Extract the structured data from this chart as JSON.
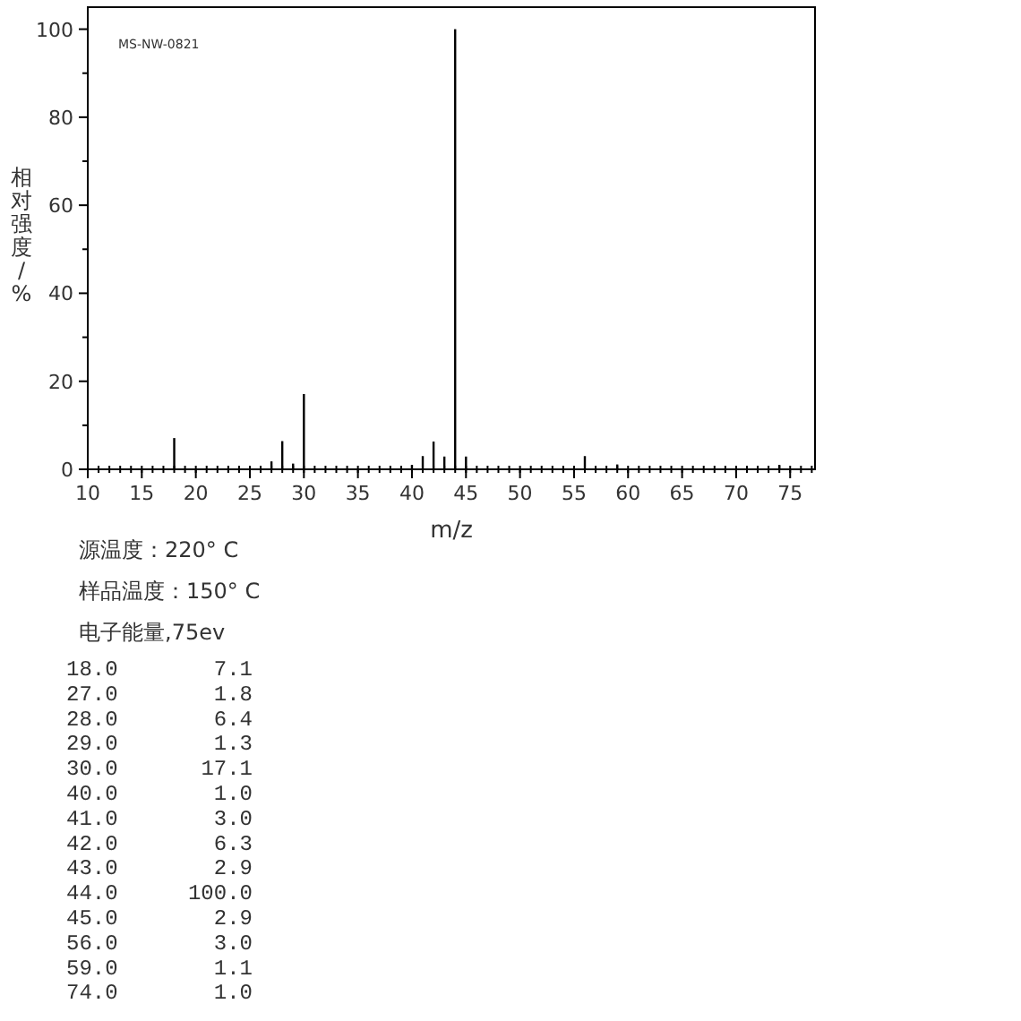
{
  "chart_data": {
    "type": "bar",
    "xlabel": "m/z",
    "ylabel": "相对强度/%",
    "x": [
      18,
      27,
      28,
      29,
      30,
      40,
      41,
      42,
      43,
      44,
      45,
      56,
      59,
      74
    ],
    "values": [
      7.1,
      1.8,
      6.4,
      1.3,
      17.1,
      1.0,
      3.0,
      6.3,
      2.9,
      100,
      2.9,
      3.0,
      1.1,
      1.0
    ],
    "color": "#000000",
    "xlim": [
      10,
      77.3
    ],
    "xticks": [
      10,
      15,
      20,
      25,
      30,
      35,
      40,
      45,
      50,
      55,
      60,
      65,
      70,
      75
    ],
    "ylim": [
      0,
      105
    ],
    "yticks": [
      0,
      20,
      40,
      60,
      80,
      100
    ],
    "annotations": [
      "MS-NW-0821",
      "源温度：220° C",
      "样品温度：150° C",
      "电子能量,75ev",
      "18.0 7.1",
      "27.0 1.8",
      "28.0 6.4",
      "29.0 1.3",
      "30.0 17.1",
      "40.0 1.0",
      "41.0 3.0",
      "42.0 6.3",
      "43.0 2.9",
      "44.0 100.0",
      "45.0 2.9",
      "56.0 3.0",
      "59.0 1.1",
      "74.0 1.0"
    ]
  }
}
